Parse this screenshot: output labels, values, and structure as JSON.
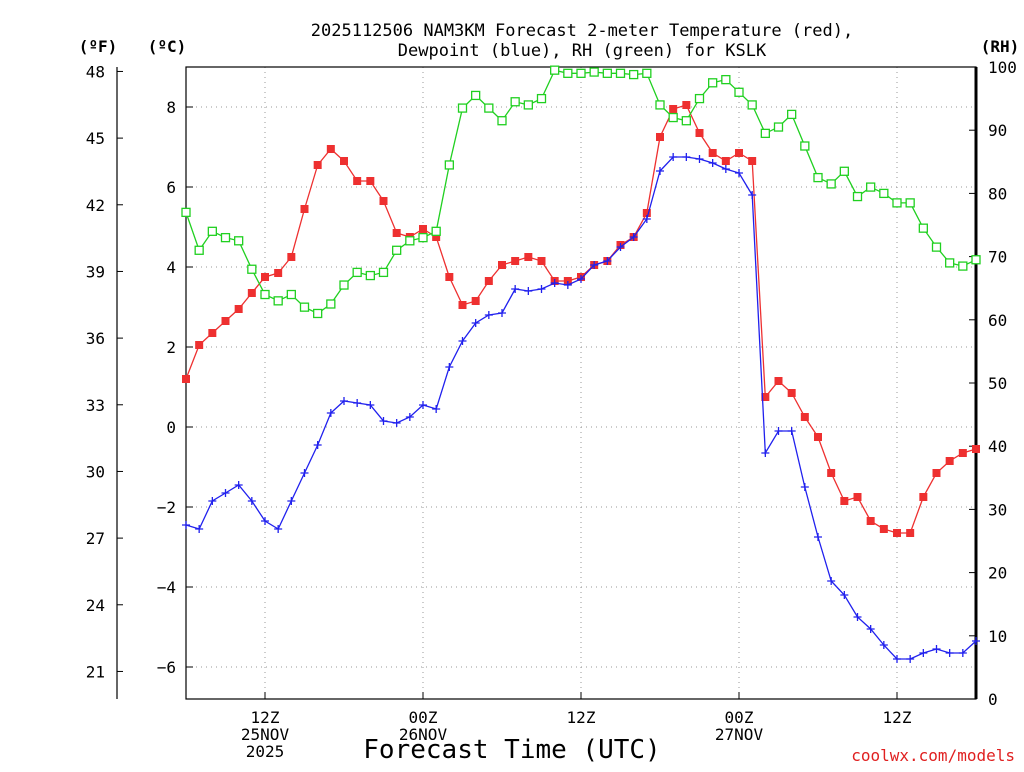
{
  "chart_data": {
    "type": "line",
    "title_line1": "2025112506 NAM3KM Forecast 2-meter Temperature (red),",
    "title_line2": "Dewpoint (blue), RH (green) for KSLK",
    "xlabel": "Forecast Time (UTC)",
    "credit": "coolwx.com/models",
    "units": {
      "fahrenheit": "(ºF)",
      "celsius": "(ºC)",
      "rh": "(RH)"
    },
    "x_range_hours": [
      0,
      60
    ],
    "x_ticks": [
      {
        "hour": 6,
        "lines": [
          "12Z",
          "25NOV",
          "2025"
        ]
      },
      {
        "hour": 18,
        "lines": [
          "00Z",
          "26NOV"
        ]
      },
      {
        "hour": 30,
        "lines": [
          "12Z"
        ]
      },
      {
        "hour": 42,
        "lines": [
          "00Z",
          "27NOV"
        ]
      },
      {
        "hour": 54,
        "lines": [
          "12Z"
        ]
      }
    ],
    "celsius_range": [
      -6.8,
      9
    ],
    "celsius_ticks": [
      -6,
      -4,
      -2,
      0,
      2,
      4,
      6,
      8
    ],
    "celsius_tick_labels": [
      "−6",
      "−4",
      "−2",
      "0",
      "2",
      "4",
      "6",
      "8"
    ],
    "fahrenheit_ticks": [
      21,
      24,
      27,
      30,
      33,
      36,
      39,
      42,
      45,
      48
    ],
    "rh_range": [
      0,
      100
    ],
    "rh_ticks": [
      0,
      10,
      20,
      30,
      40,
      50,
      60,
      70,
      80,
      90,
      100
    ],
    "series": [
      {
        "name": "Temperature",
        "color": "#ee3030",
        "marker": "filled-square",
        "hours": [
          0,
          1,
          2,
          3,
          4,
          5,
          6,
          7,
          8,
          9,
          10,
          11,
          12,
          13,
          14,
          15,
          16,
          17,
          18,
          19,
          20,
          21,
          22,
          23,
          24,
          25,
          26,
          27,
          28,
          29,
          30,
          31,
          32,
          33,
          34,
          35,
          36,
          37,
          38,
          39,
          40,
          41,
          42,
          43,
          44,
          45,
          46,
          47,
          48,
          49,
          50,
          51,
          52,
          53,
          54,
          55,
          56,
          57,
          58,
          59,
          60
        ],
        "values": [
          1.2,
          2.05,
          2.35,
          2.65,
          2.95,
          3.35,
          3.75,
          3.85,
          4.25,
          5.45,
          6.55,
          6.95,
          6.65,
          6.15,
          6.15,
          5.65,
          4.85,
          4.75,
          4.95,
          4.75,
          3.75,
          3.05,
          3.15,
          3.65,
          4.05,
          4.15,
          4.25,
          4.15,
          3.65,
          3.65,
          3.75,
          4.05,
          4.15,
          4.55,
          4.75,
          5.35,
          7.25,
          7.95,
          8.05,
          7.35,
          6.85,
          6.65,
          6.85,
          6.65,
          0.75,
          1.15,
          0.85,
          0.25,
          -0.25,
          -1.15,
          -1.85,
          -1.75,
          -2.35,
          -2.55,
          -2.65,
          -2.65,
          -1.75,
          -1.15,
          -0.85,
          -0.65,
          -0.55
        ]
      },
      {
        "name": "Dewpoint",
        "color": "#2020ee",
        "marker": "plus",
        "hours": [
          0,
          1,
          2,
          3,
          4,
          5,
          6,
          7,
          8,
          9,
          10,
          11,
          12,
          13,
          14,
          15,
          16,
          17,
          18,
          19,
          20,
          21,
          22,
          23,
          24,
          25,
          26,
          27,
          28,
          29,
          30,
          31,
          32,
          33,
          34,
          35,
          36,
          37,
          38,
          39,
          40,
          41,
          42,
          43,
          44,
          45,
          46,
          47,
          48,
          49,
          50,
          51,
          52,
          53,
          54,
          55,
          56,
          57,
          58,
          59,
          60
        ],
        "values": [
          -2.45,
          -2.55,
          -1.85,
          -1.65,
          -1.45,
          -1.85,
          -2.35,
          -2.55,
          -1.85,
          -1.15,
          -0.45,
          0.35,
          0.65,
          0.6,
          0.55,
          0.15,
          0.1,
          0.25,
          0.55,
          0.45,
          1.5,
          2.15,
          2.6,
          2.8,
          2.85,
          3.45,
          3.4,
          3.45,
          3.6,
          3.55,
          3.7,
          4.05,
          4.15,
          4.5,
          4.75,
          5.2,
          6.4,
          6.75,
          6.75,
          6.7,
          6.6,
          6.45,
          6.35,
          5.8,
          -0.65,
          -0.1,
          -0.1,
          -1.5,
          -2.75,
          -3.85,
          -4.2,
          -4.75,
          -5.05,
          -5.45,
          -5.8,
          -5.8,
          -5.65,
          -5.55,
          -5.65,
          -5.65,
          -5.35
        ]
      },
      {
        "name": "RH",
        "color": "#20d020",
        "marker": "open-square",
        "hours": [
          0,
          1,
          2,
          3,
          4,
          5,
          6,
          7,
          8,
          9,
          10,
          11,
          12,
          13,
          14,
          15,
          16,
          17,
          18,
          19,
          20,
          21,
          22,
          23,
          24,
          25,
          26,
          27,
          28,
          29,
          30,
          31,
          32,
          33,
          34,
          35,
          36,
          37,
          38,
          39,
          40,
          41,
          42,
          43,
          44,
          45,
          46,
          47,
          48,
          49,
          50,
          51,
          52,
          53,
          54,
          55,
          56,
          57,
          58,
          59,
          60
        ],
        "values": [
          77,
          71,
          74,
          73,
          72.5,
          68,
          64,
          63,
          64,
          62,
          61,
          62.5,
          65.5,
          67.5,
          67,
          67.5,
          71,
          72.5,
          73,
          74,
          84.5,
          93.5,
          95.5,
          93.5,
          91.5,
          94.5,
          94,
          95,
          99.5,
          99,
          99,
          99.2,
          99,
          99,
          98.8,
          99,
          94,
          92,
          91.5,
          95,
          97.5,
          98,
          96,
          94,
          89.5,
          90.5,
          92.5,
          87.5,
          82.5,
          81.5,
          83.5,
          79.5,
          81,
          80,
          78.5,
          78.5,
          74.5,
          71.5,
          69,
          68.5,
          69.5
        ]
      }
    ]
  }
}
